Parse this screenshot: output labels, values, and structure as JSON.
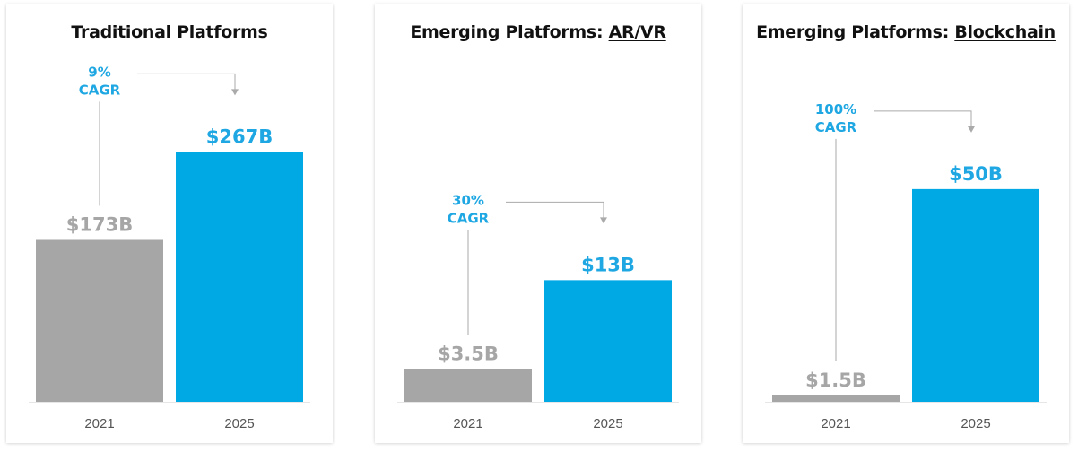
{
  "colors": {
    "baseline_bar": "#a6a6a6",
    "forecast_bar": "#00a8e4",
    "baseline_label": "#a6a6a6",
    "forecast_label": "#1ea7e2",
    "cagr_text": "#1ea7e2",
    "connector": "#aaaaaa"
  },
  "chart_data": [
    {
      "type": "bar",
      "title": "Traditional Platforms",
      "title_prefix": "Traditional Platforms",
      "title_emphasis": "",
      "categories": [
        "2021",
        "2025"
      ],
      "values": [
        173,
        267
      ],
      "value_labels": [
        "$173B",
        "$267B"
      ],
      "unit": "$B",
      "ylim": [
        0,
        300
      ],
      "cagr": {
        "value": "9%",
        "label": "CAGR"
      }
    },
    {
      "type": "bar",
      "title": "Emerging Platforms: AR/VR",
      "title_prefix": "Emerging Platforms: ",
      "title_emphasis": "AR/VR",
      "categories": [
        "2021",
        "2025"
      ],
      "values": [
        3.5,
        13
      ],
      "value_labels": [
        "$3.5B",
        "$13B"
      ],
      "unit": "$B",
      "ylim": [
        0,
        30
      ],
      "cagr": {
        "value": "30%",
        "label": "CAGR"
      }
    },
    {
      "type": "bar",
      "title": "Emerging Platforms: Blockchain",
      "title_prefix": "Emerging Platforms: ",
      "title_emphasis": "Blockchain",
      "categories": [
        "2021",
        "2025"
      ],
      "values": [
        1.5,
        50
      ],
      "value_labels": [
        "$1.5B",
        "$50B"
      ],
      "unit": "$B",
      "ylim": [
        0,
        66
      ],
      "cagr": {
        "value": "100%",
        "label": "CAGR"
      }
    }
  ]
}
